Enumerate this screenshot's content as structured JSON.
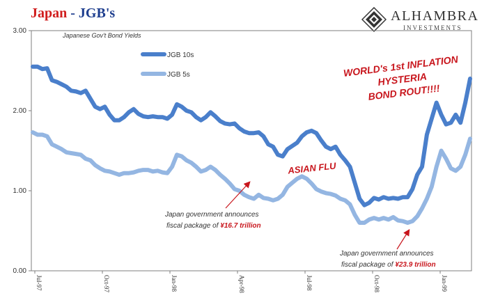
{
  "header": {
    "title_main": "Japan",
    "title_sep": " - ",
    "title_sub": "JGB's"
  },
  "logo": {
    "name": "ALHAMBRA",
    "subtitle": "INVESTMENTS"
  },
  "chart_data": {
    "type": "line",
    "subtitle": "Japanese Gov't Bond Yields",
    "ylim": [
      0,
      3
    ],
    "yticks": [
      "0.00",
      "1.00",
      "2.00",
      "3.00"
    ],
    "x_tick_labels": [
      "Jul-97",
      "Oct-97",
      "Jan-98",
      "Apr-98",
      "Jul-98",
      "Oct-98",
      "Jan-99"
    ],
    "legend_position": "top-left",
    "series": [
      {
        "name": "JGB 10s",
        "color": "#4a7fcb",
        "values": [
          2.55,
          2.55,
          2.52,
          2.53,
          2.38,
          2.36,
          2.33,
          2.3,
          2.25,
          2.24,
          2.22,
          2.25,
          2.15,
          2.05,
          2.02,
          2.05,
          1.95,
          1.88,
          1.88,
          1.92,
          1.98,
          2.02,
          1.96,
          1.93,
          1.92,
          1.93,
          1.92,
          1.92,
          1.9,
          1.95,
          2.08,
          2.05,
          2.0,
          1.98,
          1.92,
          1.88,
          1.92,
          1.98,
          1.93,
          1.87,
          1.84,
          1.83,
          1.84,
          1.78,
          1.74,
          1.72,
          1.72,
          1.73,
          1.68,
          1.58,
          1.55,
          1.45,
          1.43,
          1.52,
          1.56,
          1.6,
          1.68,
          1.73,
          1.75,
          1.72,
          1.63,
          1.55,
          1.52,
          1.55,
          1.45,
          1.38,
          1.3,
          1.1,
          0.9,
          0.82,
          0.85,
          0.91,
          0.89,
          0.92,
          0.9,
          0.91,
          0.9,
          0.92,
          0.92,
          1.02,
          1.2,
          1.3,
          1.7,
          1.9,
          2.1,
          1.95,
          1.83,
          1.85,
          1.95,
          1.85,
          2.1,
          2.4
        ]
      },
      {
        "name": "JGB 5s",
        "color": "#94b6e2",
        "values": [
          1.73,
          1.7,
          1.7,
          1.68,
          1.58,
          1.55,
          1.52,
          1.48,
          1.47,
          1.46,
          1.45,
          1.4,
          1.38,
          1.32,
          1.28,
          1.25,
          1.24,
          1.22,
          1.2,
          1.22,
          1.22,
          1.23,
          1.25,
          1.26,
          1.26,
          1.24,
          1.25,
          1.23,
          1.22,
          1.3,
          1.45,
          1.43,
          1.38,
          1.35,
          1.3,
          1.24,
          1.26,
          1.3,
          1.26,
          1.2,
          1.15,
          1.09,
          1.02,
          1.0,
          0.95,
          0.92,
          0.9,
          0.95,
          0.91,
          0.9,
          0.88,
          0.9,
          0.95,
          1.05,
          1.1,
          1.15,
          1.18,
          1.15,
          1.09,
          1.02,
          0.99,
          0.97,
          0.96,
          0.94,
          0.9,
          0.88,
          0.83,
          0.7,
          0.6,
          0.6,
          0.64,
          0.66,
          0.64,
          0.66,
          0.64,
          0.67,
          0.63,
          0.62,
          0.6,
          0.62,
          0.68,
          0.78,
          0.9,
          1.05,
          1.3,
          1.5,
          1.4,
          1.28,
          1.25,
          1.3,
          1.45,
          1.65
        ]
      }
    ],
    "annotations": [
      {
        "lines": [
          "WORLD's 1st INFLATION",
          "HYSTERIA",
          "BOND ROUT!!!!"
        ],
        "color": "#c8161d"
      },
      {
        "lines": [
          "ASIAN FLU"
        ],
        "color": "#c8161d"
      },
      {
        "lines": [
          "Japan government announces",
          "fiscal package of "
        ],
        "highlight": "¥16.7 trillion",
        "color": "#c8161d"
      },
      {
        "lines": [
          "Japan government announces",
          "fiscal package of "
        ],
        "highlight": "¥23.9 trillion",
        "color": "#c8161d"
      }
    ]
  }
}
